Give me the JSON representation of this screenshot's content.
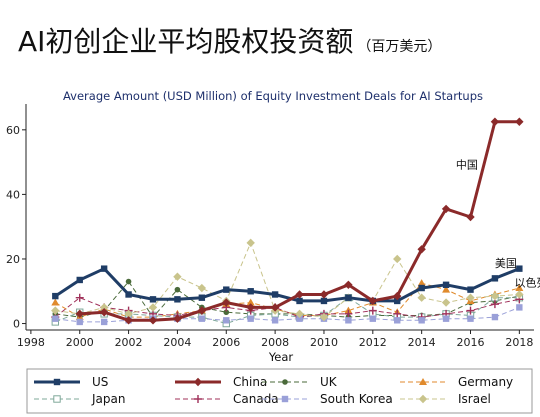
{
  "header": {
    "title": "AI初创企业平均股权投资额",
    "unit": "（百万美元）"
  },
  "chart_data": {
    "type": "line",
    "title": "Average Amount (USD Million) of Equity Investment Deals for AI Startups",
    "xlabel": "Year",
    "ylabel": "",
    "xlim": [
      1997.8,
      2018.6
    ],
    "ylim": [
      -2,
      68
    ],
    "x_ticks": [
      1998,
      2000,
      2002,
      2004,
      2006,
      2008,
      2010,
      2012,
      2014,
      2016,
      2018
    ],
    "y_ticks": [
      0,
      20,
      40,
      60
    ],
    "legend_position": "bottom",
    "series": [
      {
        "name": "US",
        "color": "#1f3d66",
        "style": "solid",
        "width": 3,
        "marker": "square",
        "x": [
          1999,
          2000,
          2001,
          2002,
          2003,
          2004,
          2005,
          2006,
          2007,
          2008,
          2009,
          2010,
          2011,
          2012,
          2013,
          2014,
          2015,
          2016,
          2017,
          2018
        ],
        "y": [
          8.5,
          13.5,
          17,
          9,
          7.5,
          7.5,
          8,
          10.5,
          10,
          9,
          7,
          7,
          8,
          7,
          7,
          11,
          12,
          10.5,
          14,
          17
        ]
      },
      {
        "name": "China",
        "color": "#8b2a2a",
        "style": "solid",
        "width": 3,
        "marker": "diamond",
        "x": [
          2000,
          2001,
          2002,
          2003,
          2004,
          2005,
          2006,
          2007,
          2008,
          2009,
          2010,
          2011,
          2012,
          2013,
          2014,
          2015,
          2016,
          2017,
          2018
        ],
        "y": [
          3,
          3.5,
          1,
          1,
          1.5,
          4,
          6.5,
          5,
          5,
          9,
          9,
          12,
          7,
          8.5,
          23,
          35.5,
          33,
          62.5,
          62.5
        ]
      },
      {
        "name": "UK",
        "color": "#4a6a3a",
        "style": "dashed",
        "width": 1,
        "marker": "circle",
        "x": [
          1999,
          2000,
          2001,
          2002,
          2003,
          2004,
          2005,
          2006,
          2007,
          2008,
          2009,
          2010,
          2011,
          2012,
          2013,
          2014,
          2015,
          2016,
          2017,
          2018
        ],
        "y": [
          3,
          2,
          4,
          13,
          2,
          10.5,
          5,
          3.5,
          3,
          3,
          3,
          2.5,
          2,
          2.5,
          2.5,
          2.5,
          3,
          6.5,
          7,
          8.5
        ]
      },
      {
        "name": "Germany",
        "color": "#e08a2c",
        "style": "dashed",
        "width": 1,
        "marker": "triangle",
        "x": [
          1999,
          2000,
          2001,
          2002,
          2003,
          2004,
          2005,
          2006,
          2007,
          2008,
          2009,
          2010,
          2011,
          2012,
          2013,
          2014,
          2015,
          2016,
          2017,
          2018
        ],
        "y": [
          6.5,
          2,
          4.5,
          2,
          2,
          3,
          4,
          6,
          6.5,
          4.5,
          2.5,
          2.5,
          4,
          6.5,
          3.5,
          12.5,
          10.5,
          7,
          9,
          11
        ]
      },
      {
        "name": "Japan",
        "color": "#7fa89a",
        "style": "dashed",
        "width": 1,
        "marker": "square-open",
        "x": [
          1999,
          2000,
          2001,
          2002,
          2003,
          2004,
          2005,
          2006,
          2007,
          2008,
          2009,
          2010,
          2011,
          2012,
          2013,
          2014,
          2015,
          2016,
          2017,
          2018
        ],
        "y": [
          0.5,
          3.5,
          3,
          3,
          2.5,
          2,
          2,
          0,
          2.5,
          3,
          2,
          2.5,
          8,
          3,
          2,
          2,
          3,
          2.5,
          8,
          8
        ]
      },
      {
        "name": "Canada",
        "color": "#a0305a",
        "style": "dashed",
        "width": 1,
        "marker": "plus",
        "x": [
          1999,
          2000,
          2001,
          2002,
          2003,
          2004,
          2005,
          2006,
          2007,
          2008,
          2009,
          2010,
          2011,
          2012,
          2013,
          2014,
          2015,
          2016,
          2017,
          2018
        ],
        "y": [
          2,
          8,
          5,
          4,
          3,
          2.5,
          4,
          5,
          4,
          5,
          2,
          3,
          3,
          4,
          3,
          2,
          3,
          4,
          6,
          7.5
        ]
      },
      {
        "name": "South Korea",
        "color": "#9aa0d8",
        "style": "dashed",
        "width": 1,
        "marker": "square",
        "x": [
          1999,
          2000,
          2001,
          2002,
          2003,
          2004,
          2005,
          2006,
          2007,
          2008,
          2009,
          2010,
          2011,
          2012,
          2013,
          2014,
          2015,
          2016,
          2017,
          2018
        ],
        "y": [
          1.5,
          0.5,
          0.5,
          1,
          1.5,
          1.5,
          1.5,
          1,
          1.5,
          1,
          1.5,
          1.5,
          1,
          1.5,
          1,
          1,
          1.5,
          1.5,
          2,
          5
        ]
      },
      {
        "name": "Israel",
        "color": "#c9c48c",
        "style": "dashed",
        "width": 1,
        "marker": "diamond",
        "x": [
          1999,
          2000,
          2001,
          2002,
          2003,
          2004,
          2005,
          2006,
          2007,
          2008,
          2009,
          2010,
          2011,
          2012,
          2013,
          2014,
          2015,
          2016,
          2017,
          2018
        ],
        "y": [
          4,
          3,
          5,
          3,
          5,
          14.5,
          11,
          7,
          25,
          4,
          3,
          2,
          8,
          7,
          20,
          8,
          6.5,
          8,
          8.5,
          9
        ]
      }
    ],
    "annotations": [
      {
        "text": "中国",
        "x": 2015.4,
        "y": 48
      },
      {
        "text": "美国",
        "x": 2017.0,
        "y": 17.5
      },
      {
        "text": "以色列",
        "x": 2017.8,
        "y": 11.5
      }
    ]
  }
}
